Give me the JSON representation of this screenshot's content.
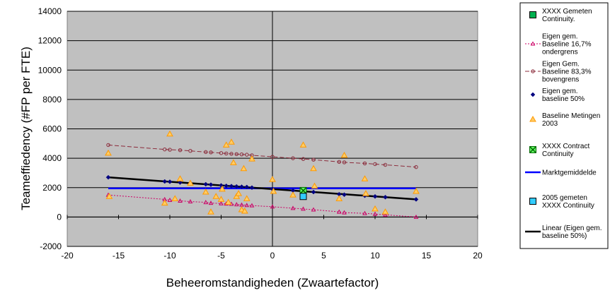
{
  "chart_data": {
    "type": "scatter",
    "title": "",
    "xlabel": "Beheeromstandigheden (Zwaartefactor)",
    "ylabel": "Teameffiedency (#FP per FTE)",
    "xlim": [
      -20,
      20
    ],
    "ylim": [
      -2000,
      14000
    ],
    "x_ticks": [
      -20,
      -15,
      -10,
      -5,
      0,
      5,
      10,
      15,
      20
    ],
    "y_ticks": [
      -2000,
      0,
      2000,
      4000,
      6000,
      8000,
      10000,
      12000,
      14000
    ],
    "grid": "horizontal",
    "plot_background": "#c0c0c0",
    "legend_position": "right",
    "series": [
      {
        "name": "XXXX Gemeten Continuity.",
        "marker": "square",
        "color": "#00b050",
        "legend": [
          "XXXX Gemeten",
          "Continuity."
        ],
        "x": [],
        "y": []
      },
      {
        "name": "Eigen gem. Baseline 16,7% ondergrens",
        "marker": "triangle-open",
        "color": "#cc0066",
        "line": "dotted",
        "legend": [
          "Eigen gem.",
          "Baseline 16,7%",
          "ondergrens"
        ],
        "x": [
          -16,
          -10.5,
          -10,
          -9,
          -8,
          -6.5,
          -6,
          -5,
          -4.5,
          -4,
          -3.5,
          -3,
          -2.5,
          -2,
          0,
          2,
          3,
          4,
          6.5,
          7,
          9,
          10,
          11,
          14
        ],
        "y": [
          1500,
          1200,
          1150,
          1100,
          1050,
          1000,
          950,
          920,
          900,
          880,
          850,
          830,
          800,
          780,
          700,
          600,
          550,
          500,
          350,
          300,
          250,
          200,
          150,
          0
        ]
      },
      {
        "name": "Eigen Gem. Baseline 83,3% bovengrens",
        "marker": "circle-open",
        "color": "#8b2b3b",
        "line": "dashed",
        "legend": [
          "Eigen Gem.",
          "Baseline 83,3%",
          "bovengrens"
        ],
        "x": [
          -16,
          -10.5,
          -10,
          -9,
          -8,
          -6.5,
          -6,
          -5,
          -4.5,
          -4,
          -3.5,
          -3,
          -2.5,
          -2,
          0,
          2,
          3,
          4,
          6.5,
          7,
          9,
          10,
          11,
          14
        ],
        "y": [
          4900,
          4600,
          4580,
          4550,
          4500,
          4420,
          4400,
          4350,
          4320,
          4300,
          4280,
          4260,
          4240,
          4200,
          4100,
          4000,
          3950,
          3900,
          3750,
          3720,
          3650,
          3600,
          3550,
          3400
        ]
      },
      {
        "name": "Eigen gem. baseline 50%",
        "marker": "diamond",
        "color": "#000080",
        "legend": [
          "Eigen gem.",
          "baseline 50%"
        ],
        "x": [
          -16,
          -10.5,
          -10,
          -9,
          -8,
          -6.5,
          -6,
          -5,
          -4.5,
          -4,
          -3.5,
          -3,
          -2.5,
          -2,
          0,
          2,
          3,
          4,
          6.5,
          7,
          9,
          10,
          11,
          14
        ],
        "y": [
          2700,
          2420,
          2400,
          2350,
          2300,
          2230,
          2200,
          2150,
          2120,
          2100,
          2080,
          2060,
          2040,
          2000,
          1900,
          1800,
          1750,
          1700,
          1550,
          1520,
          1450,
          1400,
          1350,
          1200
        ]
      },
      {
        "name": "Baseline Metingen 2003",
        "marker": "triangle",
        "color": "#ff9900",
        "legend": [
          "Baseline Metingen",
          "2003"
        ],
        "x": [
          -16,
          -15.9,
          -10.5,
          -10,
          -9.5,
          -9,
          -8,
          -6.5,
          -6,
          -5.5,
          -5,
          -4.9,
          -4.5,
          -4.3,
          -4,
          -3.8,
          -3.5,
          -3.3,
          -3,
          -2.8,
          -2.7,
          -2.5,
          -2,
          0,
          0.1,
          2,
          3,
          4,
          4.1,
          6.5,
          7,
          9,
          9.1,
          10,
          11,
          14
        ],
        "y": [
          4350,
          1400,
          950,
          5650,
          1250,
          2600,
          2300,
          1700,
          350,
          1400,
          1200,
          1900,
          4900,
          1000,
          5100,
          3700,
          1400,
          1600,
          500,
          3300,
          400,
          1250,
          3950,
          2550,
          1750,
          1500,
          4900,
          3300,
          2100,
          1250,
          4200,
          2600,
          1600,
          550,
          350,
          1750
        ]
      },
      {
        "name": "XXXX Contract Continuity",
        "marker": "x-square",
        "color": "#00a000",
        "legend": [
          "XXXX Contract",
          "Continuity"
        ],
        "x": [
          3
        ],
        "y": [
          1800
        ]
      },
      {
        "name": "Marktgemiddelde",
        "marker": "none",
        "color": "#0000ff",
        "line": "solid",
        "legend": [
          "Marktgemiddelde"
        ],
        "x": [
          -16,
          14
        ],
        "y": [
          1950,
          1950
        ]
      },
      {
        "name": "2005 gemeten XXXX Continuity",
        "marker": "square",
        "color": "#33ccff",
        "legend": [
          "2005 gemeten",
          "XXXX Continuity"
        ],
        "x": [
          3
        ],
        "y": [
          1400
        ]
      },
      {
        "name": "Linear (Eigen gem. baseline 50%)",
        "marker": "none",
        "color": "#000000",
        "line": "solid",
        "legend": [
          "Linear (Eigen gem.",
          "baseline 50%)"
        ],
        "x": [
          -16,
          14
        ],
        "y": [
          2700,
          1200
        ]
      }
    ]
  }
}
